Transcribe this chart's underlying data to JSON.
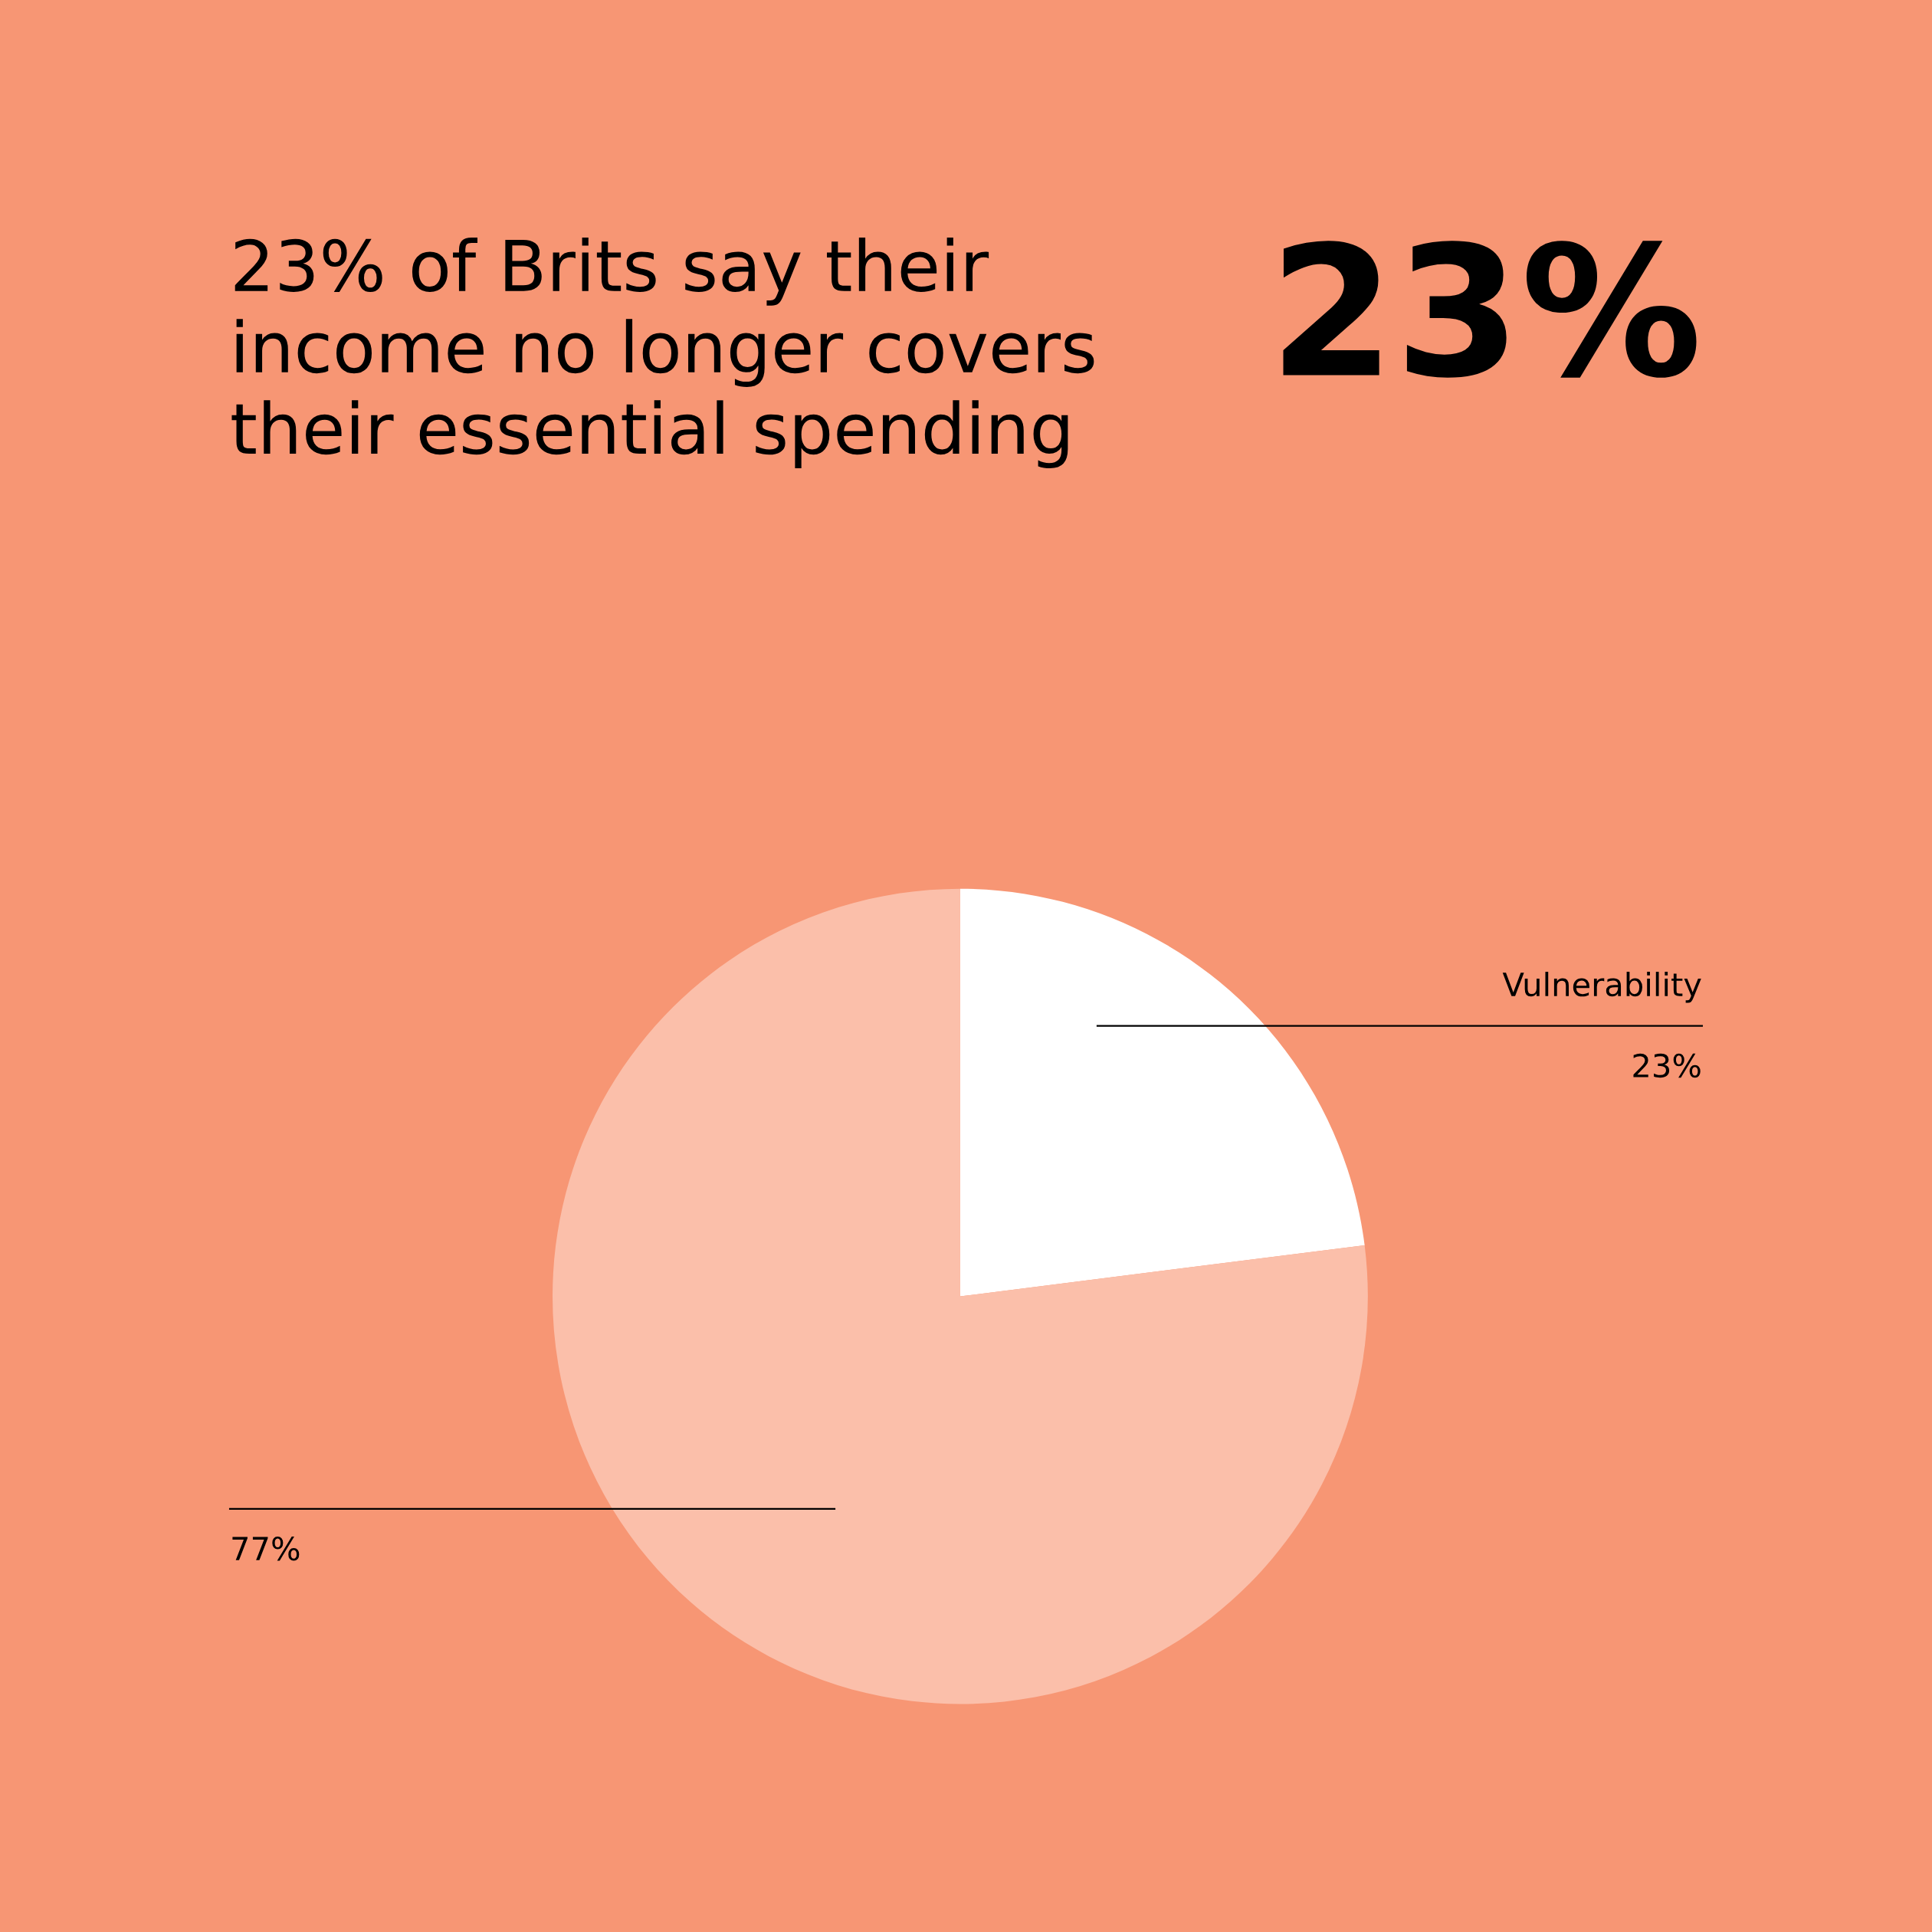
{
  "chart_data": {
    "type": "pie",
    "title": "23% of Brits say their\nincome no longer covers\ntheir essential spending",
    "categories": [
      "Vulnerability",
      null
    ],
    "values": [
      23,
      77
    ],
    "colors": [
      "#ffffff",
      "#fbbfaa"
    ],
    "value_labels": [
      "23%",
      "77%"
    ],
    "annotations": [
      "23%"
    ]
  }
}
